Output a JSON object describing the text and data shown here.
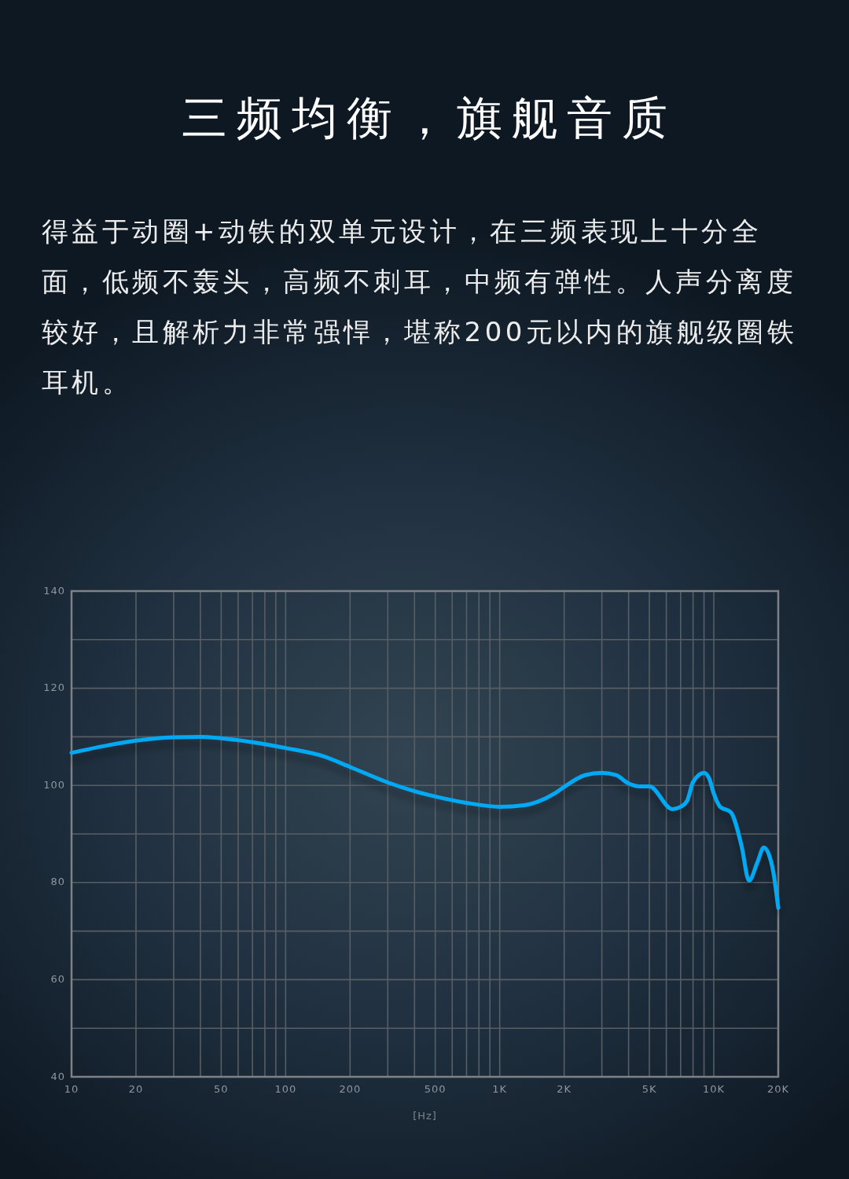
{
  "chart_data": {
    "type": "line",
    "title": "三频均衡，旗舰音质",
    "subtitle": "得益于动圈+动铁的双单元设计，在三频表现上十分全面，低频不轰头，高频不刺耳，中频有弹性。人声分离度较好，且解析力非常强悍，堪称200元以内的旗舰级圈铁耳机。",
    "xlabel": "[Hz]",
    "log": "x",
    "x": [
      10,
      15,
      20,
      30,
      40,
      50,
      70,
      100,
      150,
      200,
      300,
      400,
      500,
      700,
      1000,
      1300,
      1500,
      1800,
      2000,
      2500,
      3000,
      3500,
      4000,
      4500,
      5000,
      6400,
      7000,
      7500,
      8000,
      9000,
      9500,
      10000,
      10700,
      12000,
      13500,
      14600,
      16000,
      17100,
      18000,
      19000,
      20000
    ],
    "series": [
      {
        "color": "#00a9f4",
        "values": [
          106.7,
          108.3,
          109.2,
          109.9,
          110.0,
          109.7,
          108.9,
          107.7,
          106.0,
          103.8,
          100.6,
          98.8,
          97.7,
          96.4,
          95.6,
          95.9,
          96.6,
          98.3,
          99.7,
          102.1,
          102.6,
          102.1,
          100.4,
          99.8,
          99.8,
          95.1,
          95.6,
          96.8,
          100.7,
          102.6,
          101.5,
          98.3,
          95.6,
          94.5,
          87.4,
          80.4,
          84.2,
          87.2,
          86.0,
          82.0,
          74.8
        ]
      }
    ],
    "xlim": [
      10,
      20000
    ],
    "ylim": [
      40,
      140
    ],
    "xticks": [
      10,
      20,
      {
        "value": 30,
        "label": null
      },
      {
        "value": 40,
        "label": null
      },
      50,
      {
        "value": 60,
        "label": null
      },
      {
        "value": 70,
        "label": null
      },
      {
        "value": 80,
        "label": null
      },
      {
        "value": 90,
        "label": null
      },
      100,
      200,
      {
        "value": 300,
        "label": null
      },
      {
        "value": 400,
        "label": null
      },
      500,
      {
        "value": 600,
        "label": null
      },
      {
        "value": 700,
        "label": null
      },
      {
        "value": 800,
        "label": null
      },
      {
        "value": 900,
        "label": null
      },
      {
        "value": 1000,
        "label": "1K"
      },
      {
        "value": 2000,
        "label": "2K"
      },
      {
        "value": 3000,
        "label": null
      },
      {
        "value": 4000,
        "label": null
      },
      {
        "value": 5000,
        "label": "5K"
      },
      {
        "value": 6000,
        "label": null
      },
      {
        "value": 7000,
        "label": null
      },
      {
        "value": 8000,
        "label": null
      },
      {
        "value": 9000,
        "label": null
      },
      {
        "value": 10000,
        "label": "10K"
      },
      {
        "value": 20000,
        "label": "20K"
      }
    ],
    "yticks": [
      40,
      {
        "value": 50,
        "label": null
      },
      60,
      {
        "value": 70,
        "label": null
      },
      80,
      {
        "value": 90,
        "label": null
      },
      100,
      {
        "value": 110,
        "label": null
      },
      120,
      {
        "value": 130,
        "label": null
      },
      140
    ],
    "grid": true
  }
}
